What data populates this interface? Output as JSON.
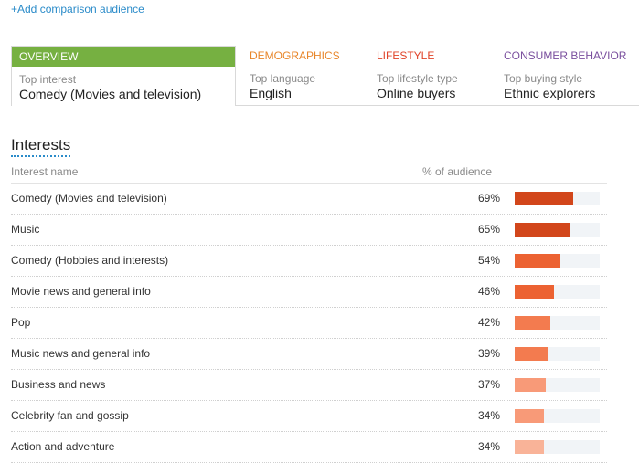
{
  "add_link": "+Add comparison audience",
  "tabs": [
    {
      "header": "OVERVIEW",
      "sub": "Top interest",
      "value": "Comedy (Movies and television)"
    },
    {
      "header": "DEMOGRAPHICS",
      "sub": "Top language",
      "value": "English"
    },
    {
      "header": "LIFESTYLE",
      "sub": "Top lifestyle type",
      "value": "Online buyers"
    },
    {
      "header": "CONSUMER BEHAVIOR",
      "sub": "Top buying style",
      "value": "Ethnic explorers"
    }
  ],
  "interests": {
    "title": "Interests",
    "col_name": "Interest name",
    "col_pct": "% of audience",
    "rows": [
      {
        "name": "Comedy (Movies and television)",
        "pct": "69%",
        "value": 69,
        "color": "#d2461b"
      },
      {
        "name": "Music",
        "pct": "65%",
        "value": 65,
        "color": "#d2461b"
      },
      {
        "name": "Comedy (Hobbies and interests)",
        "pct": "54%",
        "value": 54,
        "color": "#ec6232"
      },
      {
        "name": "Movie news and general info",
        "pct": "46%",
        "value": 46,
        "color": "#ec6232"
      },
      {
        "name": "Pop",
        "pct": "42%",
        "value": 42,
        "color": "#f37b4f"
      },
      {
        "name": "Music news and general info",
        "pct": "39%",
        "value": 39,
        "color": "#f37b4f"
      },
      {
        "name": "Business and news",
        "pct": "37%",
        "value": 37,
        "color": "#f89a78"
      },
      {
        "name": "Celebrity fan and gossip",
        "pct": "34%",
        "value": 34,
        "color": "#f89a78"
      },
      {
        "name": "Action and adventure",
        "pct": "34%",
        "value": 34,
        "color": "#f9b398"
      }
    ]
  }
}
